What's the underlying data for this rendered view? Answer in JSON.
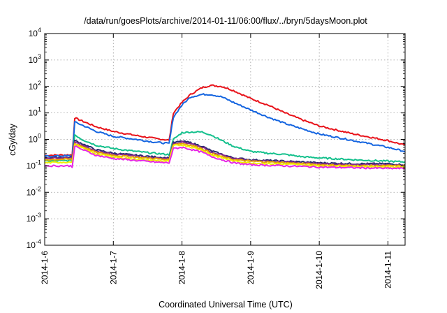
{
  "chart_data": {
    "type": "line",
    "title": "/data/run/goesPlots/archive/2014-01-11/06:00/flux/../bryn/5daysMoon.plot",
    "xlabel": "Coordinated Universal Time (UTC)",
    "ylabel": "cGy/day",
    "y_scale": "log",
    "ylim": [
      0.0001,
      10000
    ],
    "xlim": [
      "2014-01-06T00:00",
      "2014-01-11T06:00"
    ],
    "grid": true,
    "legend": "none",
    "x_ticks": [
      "2014-1-6",
      "2014-1-7",
      "2014-1-8",
      "2014-1-9",
      "2014-1-10",
      "2014-1-11"
    ],
    "x_tick_dates": [
      "2014-01-06T00:00",
      "2014-01-07T00:00",
      "2014-01-08T00:00",
      "2014-01-09T00:00",
      "2014-01-10T00:00",
      "2014-01-11T00:00"
    ],
    "y_ticks": [
      {
        "base": "10",
        "exp": "-4",
        "value": 0.0001
      },
      {
        "base": "10",
        "exp": "-3",
        "value": 0.001
      },
      {
        "base": "10",
        "exp": "-2",
        "value": 0.01
      },
      {
        "base": "10",
        "exp": "-1",
        "value": 0.1
      },
      {
        "base": "10",
        "exp": "0",
        "value": 1
      },
      {
        "base": "10",
        "exp": "1",
        "value": 10
      },
      {
        "base": "10",
        "exp": "2",
        "value": 100
      },
      {
        "base": "10",
        "exp": "3",
        "value": 1000
      },
      {
        "base": "10",
        "exp": "4",
        "value": 10000
      }
    ],
    "x": [
      "2014-01-06T00:00",
      "2014-01-06T09:00",
      "2014-01-06T09:36",
      "2014-01-06T10:30",
      "2014-01-06T13:00",
      "2014-01-06T18:00",
      "2014-01-07T00:00",
      "2014-01-07T08:00",
      "2014-01-07T14:00",
      "2014-01-07T19:00",
      "2014-01-07T19:30",
      "2014-01-07T21:00",
      "2014-01-08T00:00",
      "2014-01-08T03:00",
      "2014-01-08T07:00",
      "2014-01-08T10:00",
      "2014-01-08T14:00",
      "2014-01-08T18:00",
      "2014-01-09T00:00",
      "2014-01-09T06:00",
      "2014-01-09T12:00",
      "2014-01-09T18:00",
      "2014-01-10T00:00",
      "2014-01-10T12:00",
      "2014-01-11T00:00",
      "2014-01-11T06:00"
    ],
    "series": [
      {
        "color": "#e8121a",
        "values": [
          0.25,
          0.26,
          0.25,
          6.5,
          5.0,
          3.0,
          2.0,
          1.4,
          1.1,
          0.95,
          0.9,
          10,
          25,
          50,
          90,
          110,
          100,
          70,
          35,
          20,
          10,
          5.5,
          3.2,
          1.6,
          0.9,
          0.6
        ]
      },
      {
        "color": "#1565e0",
        "values": [
          0.23,
          0.24,
          0.22,
          4.5,
          3.5,
          2.0,
          1.3,
          1.0,
          0.8,
          0.7,
          0.7,
          7,
          20,
          40,
          50,
          50,
          40,
          25,
          13,
          7,
          4,
          2.5,
          1.6,
          0.9,
          0.5,
          0.35
        ]
      },
      {
        "color": "#14c08c",
        "values": [
          0.15,
          0.16,
          0.15,
          1.5,
          1.0,
          0.6,
          0.45,
          0.35,
          0.3,
          0.27,
          0.26,
          1.0,
          1.8,
          1.9,
          1.9,
          1.5,
          0.9,
          0.55,
          0.35,
          0.3,
          0.27,
          0.22,
          0.2,
          0.17,
          0.15,
          0.14
        ]
      },
      {
        "color": "#2a2a6e",
        "values": [
          0.2,
          0.21,
          0.2,
          0.9,
          0.7,
          0.4,
          0.3,
          0.25,
          0.22,
          0.2,
          0.2,
          0.75,
          0.85,
          0.75,
          0.55,
          0.38,
          0.27,
          0.2,
          0.17,
          0.16,
          0.15,
          0.14,
          0.13,
          0.12,
          0.12,
          0.11
        ]
      },
      {
        "color": "#8a2a8a",
        "values": [
          0.19,
          0.2,
          0.19,
          0.8,
          0.6,
          0.35,
          0.28,
          0.23,
          0.2,
          0.19,
          0.19,
          0.7,
          0.8,
          0.7,
          0.5,
          0.35,
          0.25,
          0.19,
          0.16,
          0.15,
          0.14,
          0.13,
          0.12,
          0.11,
          0.11,
          0.1
        ]
      },
      {
        "color": "#e8a800",
        "values": [
          0.17,
          0.18,
          0.17,
          0.7,
          0.55,
          0.32,
          0.25,
          0.21,
          0.19,
          0.17,
          0.17,
          0.65,
          0.7,
          0.6,
          0.45,
          0.3,
          0.22,
          0.17,
          0.15,
          0.14,
          0.13,
          0.12,
          0.11,
          0.1,
          0.1,
          0.1
        ]
      },
      {
        "color": "#f0f000",
        "values": [
          0.13,
          0.14,
          0.13,
          0.62,
          0.48,
          0.28,
          0.22,
          0.18,
          0.16,
          0.15,
          0.15,
          0.58,
          0.62,
          0.52,
          0.4,
          0.27,
          0.2,
          0.15,
          0.13,
          0.12,
          0.115,
          0.11,
          0.1,
          0.095,
          0.09,
          0.09
        ]
      },
      {
        "color": "#e626e6",
        "values": [
          0.1,
          0.1,
          0.09,
          0.55,
          0.42,
          0.25,
          0.19,
          0.16,
          0.14,
          0.13,
          0.13,
          0.45,
          0.5,
          0.42,
          0.33,
          0.23,
          0.17,
          0.13,
          0.11,
          0.105,
          0.1,
          0.095,
          0.09,
          0.085,
          0.08,
          0.08
        ]
      }
    ]
  }
}
